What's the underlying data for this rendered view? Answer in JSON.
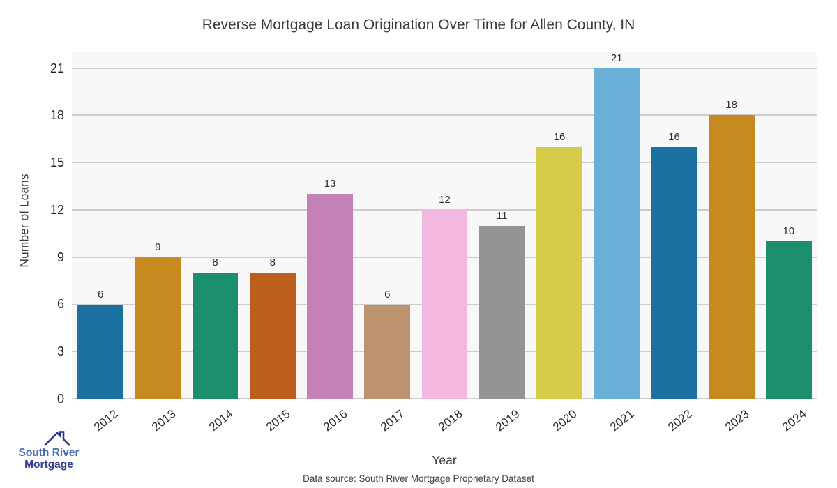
{
  "title": "Reverse Mortgage Loan Origination Over Time for Allen County, IN",
  "footer": {
    "text": "Data source: South River Mortgage Proprietary Dataset"
  },
  "logo": {
    "line1": "South River",
    "line2": "Mortgage"
  },
  "colors": {
    "plot_background": "#f8f8f8",
    "gridline": "#cdcdcd",
    "title_text": "#3a3a3a",
    "tick_text": "#1f1f1f",
    "logo_blue": "#4a6db4",
    "logo_navy": "#333b90",
    "logo_roof": "#2c3390"
  },
  "chart_data": {
    "type": "bar",
    "title": "Reverse Mortgage Loan Origination Over Time for Allen County, IN",
    "xlabel": "Year",
    "ylabel": "Number of Loans",
    "categories": [
      "2012",
      "2013",
      "2014",
      "2015",
      "2016",
      "2017",
      "2018",
      "2019",
      "2020",
      "2021",
      "2022",
      "2023",
      "2024"
    ],
    "values": [
      6,
      9,
      8,
      8,
      13,
      6,
      12,
      11,
      16,
      21,
      16,
      18,
      10
    ],
    "bar_colors": [
      "#1a719f",
      "#c78a20",
      "#1b8e6c",
      "#bd5f1c",
      "#c481b5",
      "#bd926e",
      "#f2b8e0",
      "#949494",
      "#d5cd4a",
      "#69afd7",
      "#1a719f",
      "#c78a20",
      "#1b8e6c"
    ],
    "yticks": [
      0,
      3,
      6,
      9,
      12,
      15,
      18,
      21
    ],
    "ylim": [
      0,
      22.05
    ],
    "grid": "horizontal",
    "legend": "none",
    "value_labels": true,
    "bar_width_fraction": 0.8
  }
}
